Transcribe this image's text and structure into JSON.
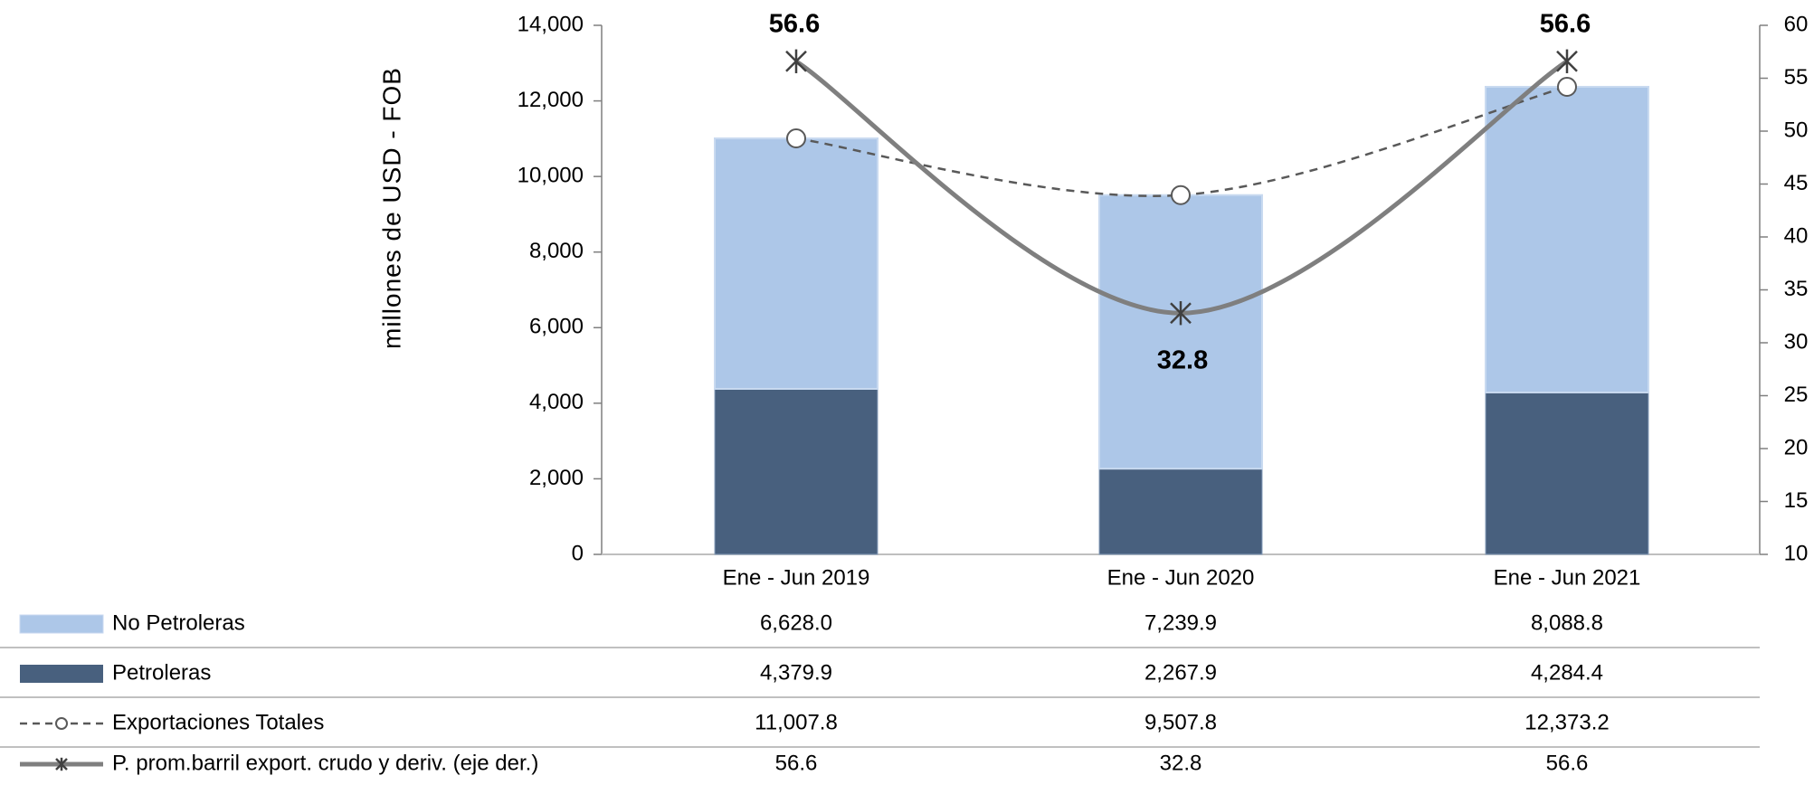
{
  "chart_data": {
    "type": "bar",
    "stacked": true,
    "categories": [
      "Ene - Jun 2019",
      "Ene - Jun 2020",
      "Ene - Jun 2021"
    ],
    "ylabel": "millones de USD  - FOB",
    "ylim": [
      0,
      14000
    ],
    "y_ticks": [
      "0",
      "2,000",
      "4,000",
      "6,000",
      "8,000",
      "10,000",
      "12,000",
      "14,000"
    ],
    "y2lim": [
      10,
      60
    ],
    "y2_ticks": [
      "10",
      "15",
      "20",
      "25",
      "30",
      "35",
      "40",
      "45",
      "50",
      "55",
      "60"
    ],
    "grid": false,
    "legend_position": "data table below chart",
    "series": [
      {
        "name": "No Petroleras",
        "kind": "bar",
        "axis": "left",
        "color": "#adc7e8",
        "values": [
          6628.0,
          7239.9,
          8088.8
        ],
        "table_values": [
          "6,628.0",
          "7,239.9",
          "8,088.8"
        ]
      },
      {
        "name": "Petroleras",
        "kind": "bar",
        "axis": "left",
        "color": "#48607e",
        "values": [
          4379.9,
          2267.9,
          4284.4
        ],
        "table_values": [
          "4,379.9",
          "2,267.9",
          "4,284.4"
        ]
      },
      {
        "name": "Exportaciones Totales",
        "kind": "line",
        "line_style": "dashed",
        "marker": "circle",
        "axis": "left",
        "color": "#595959",
        "values": [
          11007.8,
          9507.8,
          12373.2
        ],
        "table_values": [
          "11,007.8",
          "9,507.8",
          "12,373.2"
        ]
      },
      {
        "name": "P. prom.barril export. crudo y deriv. (eje der.)",
        "kind": "line",
        "line_style": "solid",
        "marker": "asterisk",
        "axis": "right",
        "color": "#7f7f7f",
        "values": [
          56.6,
          32.8,
          56.6
        ],
        "table_values": [
          "56.6",
          "32.8",
          "56.6"
        ]
      }
    ],
    "data_labels": [
      "56.6",
      "32.8",
      "56.6"
    ]
  }
}
